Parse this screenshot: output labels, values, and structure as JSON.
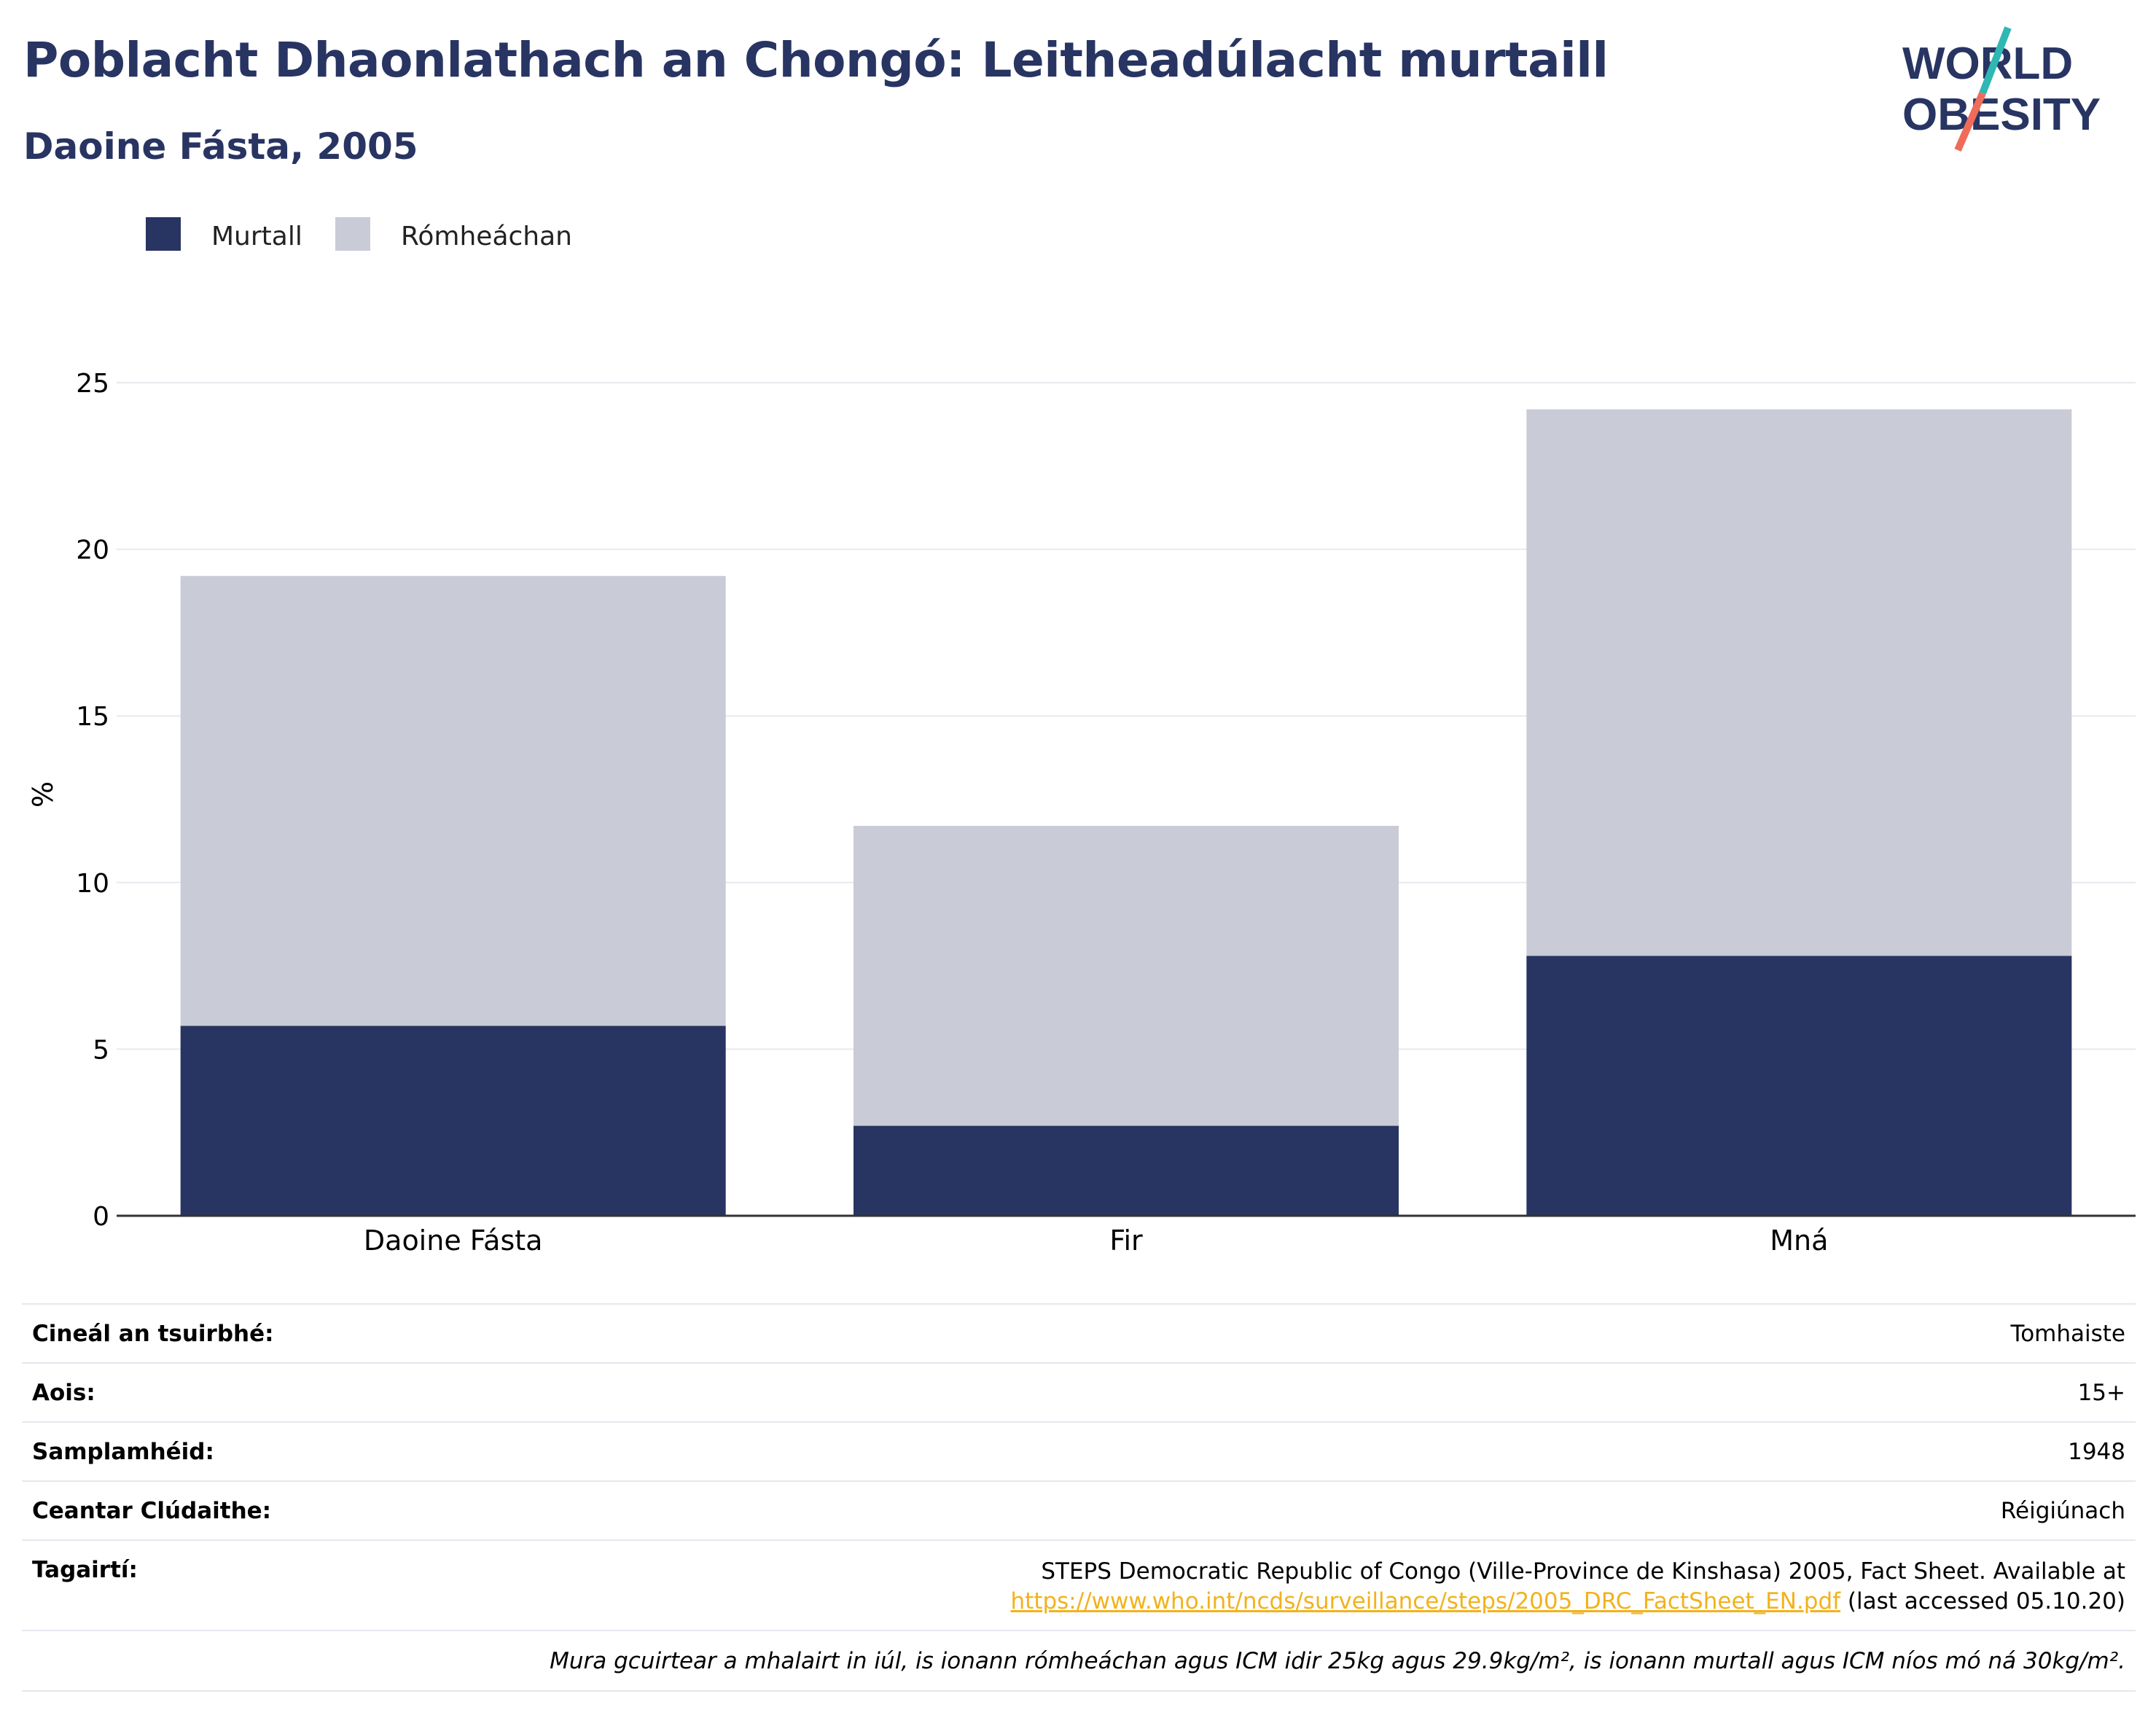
{
  "header": {
    "title": "Poblacht Dhaonlathach an Chongó: Leitheadúlacht murtaill",
    "subtitle": "Daoine Fásta, 2005"
  },
  "logo": {
    "line1": "WORLD",
    "line2": "OBESITY",
    "colors": {
      "text": "#283462",
      "slash_top": "#2fb7b3",
      "slash_bottom": "#ef6c5a"
    }
  },
  "chart_data": {
    "type": "bar",
    "stacked": true,
    "categories": [
      "Daoine Fásta",
      "Fir",
      "Mná"
    ],
    "series": [
      {
        "name": "Murtall",
        "color": "#283462",
        "values": [
          5.7,
          2.7,
          7.8
        ]
      },
      {
        "name": "Rómheáchan",
        "color": "#c9cbd6",
        "values": [
          13.5,
          9.0,
          16.4
        ]
      }
    ],
    "ylabel": "%",
    "xlabel": "",
    "ylim": [
      0,
      25
    ],
    "yticks": [
      0,
      5,
      10,
      15,
      20,
      25
    ],
    "grid": true,
    "legend": "top-left"
  },
  "info": {
    "rows": [
      {
        "label": "Cineál an tsuirbhé:",
        "value": "Tomhaiste"
      },
      {
        "label": "Aois:",
        "value": "15+"
      },
      {
        "label": "Samplamhéid:",
        "value": "1948"
      },
      {
        "label": "Ceantar Clúdaithe:",
        "value": "Réigiúnach"
      }
    ],
    "references": {
      "label": "Tagairtí:",
      "line1": "STEPS Democratic Republic of Congo (Ville-Province de Kinshasa) 2005, Fact Sheet. Available at",
      "link": "https://www.who.int/ncds/surveillance/steps/2005_DRC_FactSheet_EN.pdf",
      "after_link": " (last accessed 05.10.20)"
    },
    "note": "Mura gcuirtear a mhalairt in iúl, is ionann rómheáchan agus ICM idir 25kg agus 29.9kg/m², is ionann murtall agus ICM níos mó ná 30kg/m²."
  }
}
